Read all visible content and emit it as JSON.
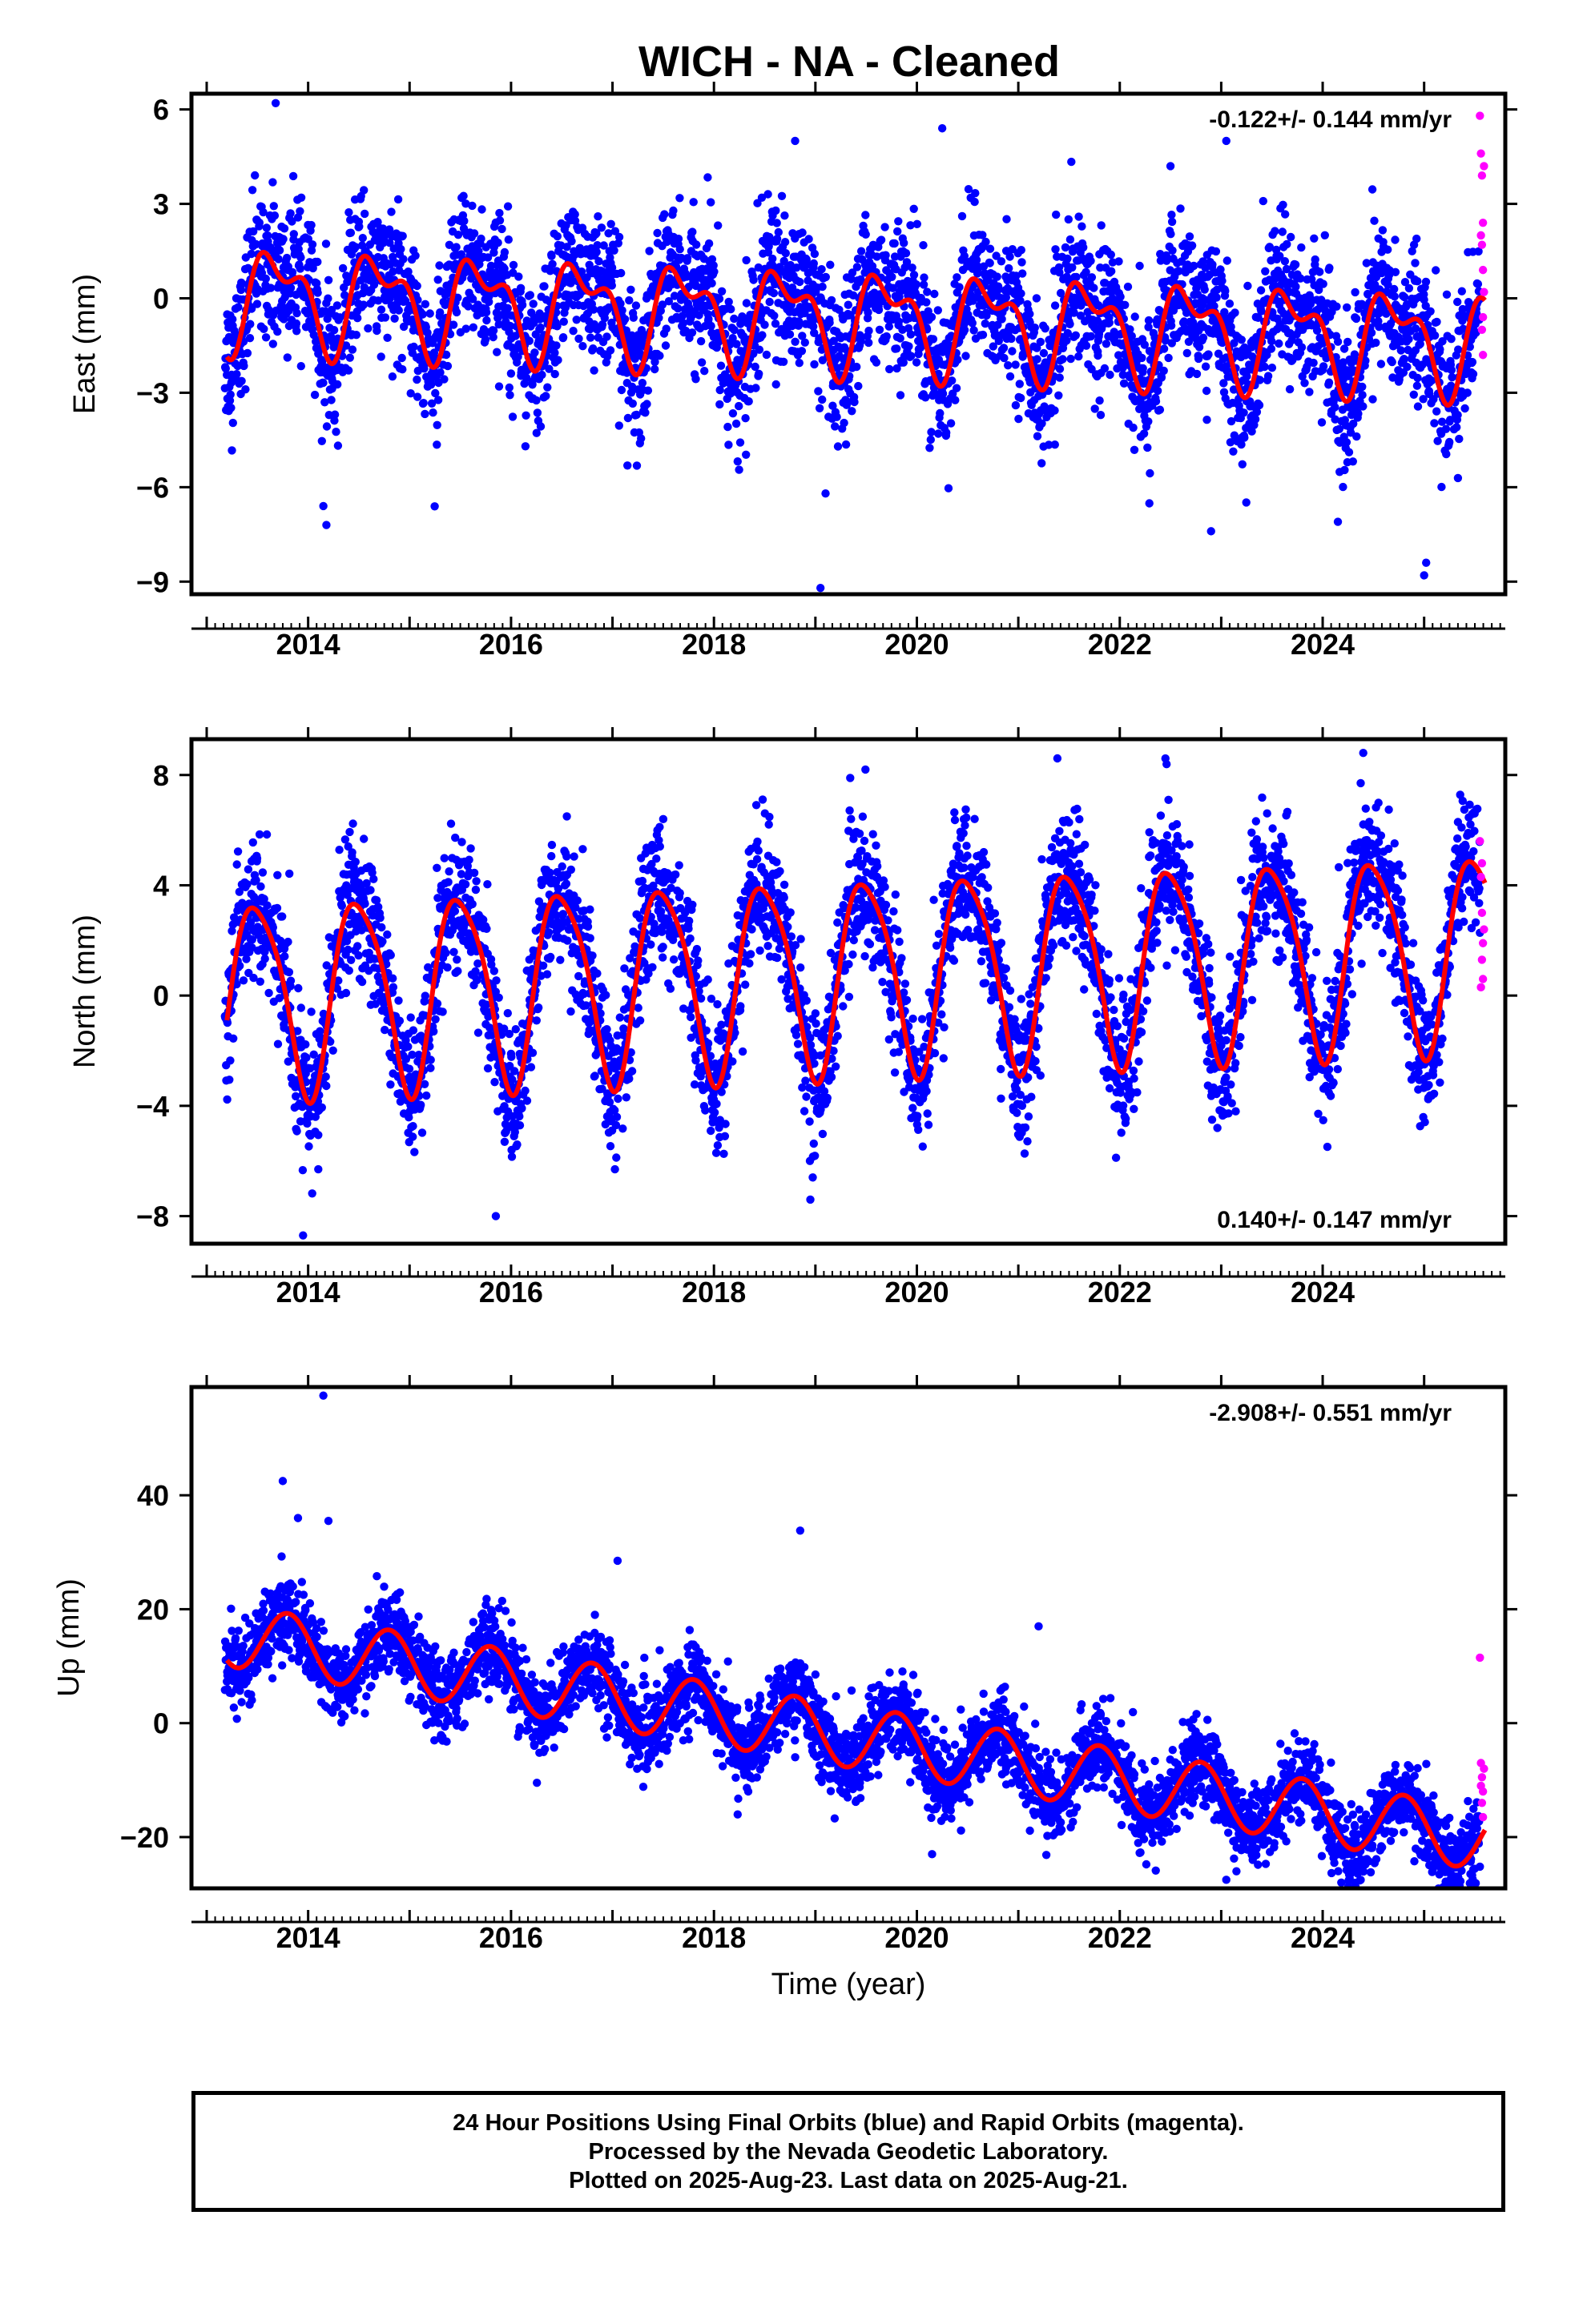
{
  "title": "WICH  - NA - Cleaned",
  "colors": {
    "final_orbits": "#0000ff",
    "rapid_orbits": "#ff00ff",
    "model": "#ff0000",
    "frame": "#000000"
  },
  "chart_data": [
    {
      "type": "scatter",
      "name": "east",
      "ylabel": "East (mm)",
      "xlabel": "",
      "rate_label": "-0.122+/- 0.144 mm/yr",
      "rate_position": "top-right",
      "xlim": [
        2012.85,
        2025.8
      ],
      "ylim": [
        -9.4,
        6.5
      ],
      "xticks": [
        "2014",
        "2016",
        "2018",
        "2020",
        "2022",
        "2024"
      ],
      "yticks": [
        "6",
        "3",
        "0",
        "-3",
        "-6",
        "-9"
      ],
      "model": {
        "offset": 0.1,
        "trend": -0.12,
        "annual_amp": 1.35,
        "annual_peak": 0.7,
        "semi_amp": 0.75,
        "semi_phase": 0.5,
        "noise": 1.1
      },
      "outliers": [
        [
          2013.68,
          6.2
        ],
        [
          2014.18,
          -7.2
        ],
        [
          2014.15,
          -6.6
        ],
        [
          2019.05,
          -9.2
        ],
        [
          2019.1,
          -6.2
        ],
        [
          2022.9,
          -7.4
        ],
        [
          2023.05,
          5.0
        ],
        [
          2024.15,
          -7.1
        ],
        [
          2025.0,
          -8.8
        ],
        [
          2025.02,
          -8.4
        ],
        [
          2020.25,
          5.4
        ],
        [
          2018.8,
          5.0
        ],
        [
          2022.5,
          4.2
        ]
      ],
      "rapid": [
        [
          2025.55,
          5.8
        ],
        [
          2025.56,
          4.6
        ],
        [
          2025.57,
          3.9
        ],
        [
          2025.58,
          2.4
        ],
        [
          2025.57,
          1.7
        ],
        [
          2025.58,
          0.9
        ],
        [
          2025.59,
          0.2
        ],
        [
          2025.58,
          -0.6
        ],
        [
          2025.57,
          -1.0
        ],
        [
          2025.58,
          -1.8
        ],
        [
          2025.56,
          2.0
        ],
        [
          2025.59,
          4.2
        ]
      ]
    },
    {
      "type": "scatter",
      "name": "north",
      "ylabel": "North (mm)",
      "xlabel": "",
      "rate_label": "0.140+/- 0.147 mm/yr",
      "rate_position": "bottom-right",
      "xlim": [
        2012.85,
        2025.8
      ],
      "ylim": [
        -9.0,
        9.3
      ],
      "xticks": [
        "2014",
        "2016",
        "2018",
        "2020",
        "2022",
        "2024"
      ],
      "yticks": [
        "8",
        "4",
        "0",
        "-4",
        "-8"
      ],
      "model": {
        "offset": 0.0,
        "trend": 0.14,
        "annual_amp": 3.5,
        "annual_peak": 0.5,
        "semi_amp": 0.6,
        "semi_phase": 0.3,
        "noise": 1.2
      },
      "outliers": [
        [
          2013.95,
          -8.7
        ],
        [
          2014.1,
          -6.3
        ],
        [
          2015.85,
          -8.0
        ],
        [
          2018.95,
          -7.4
        ],
        [
          2022.45,
          8.6
        ],
        [
          2024.4,
          8.8
        ],
        [
          2016.55,
          6.5
        ],
        [
          2017.5,
          6.4
        ]
      ],
      "rapid": [
        [
          2025.55,
          5.6
        ],
        [
          2025.56,
          4.3
        ],
        [
          2025.57,
          3.0
        ],
        [
          2025.58,
          1.9
        ],
        [
          2025.57,
          1.3
        ],
        [
          2025.58,
          0.6
        ],
        [
          2025.56,
          0.3
        ],
        [
          2025.59,
          2.4
        ],
        [
          2025.57,
          4.8
        ]
      ]
    },
    {
      "type": "scatter",
      "name": "up",
      "ylabel": "Up (mm)",
      "xlabel": "Time (year)",
      "rate_label": "-2.908+/- 0.551 mm/yr",
      "rate_position": "top-right",
      "xlim": [
        2012.85,
        2025.8
      ],
      "ylim": [
        -29,
        59
      ],
      "xticks": [
        "2014",
        "2016",
        "2018",
        "2020",
        "2022",
        "2024"
      ],
      "yticks": [
        "40",
        "20",
        "0",
        "-20"
      ],
      "model": {
        "offset": 15.5,
        "trend": -2.9,
        "annual_amp": 5.5,
        "annual_peak": 0.8,
        "semi_amp": 0.0,
        "semi_phase": 0.0,
        "noise": 3.5
      },
      "outliers": [
        [
          2014.15,
          57.5
        ],
        [
          2013.75,
          42.5
        ],
        [
          2013.9,
          36.0
        ],
        [
          2014.2,
          35.5
        ],
        [
          2018.85,
          33.8
        ],
        [
          2017.05,
          28.5
        ],
        [
          2021.2,
          17.0
        ],
        [
          2023.05,
          -27.5
        ],
        [
          2023.15,
          -26.0
        ],
        [
          2020.15,
          -23.0
        ]
      ],
      "rapid": [
        [
          2025.55,
          11.5
        ],
        [
          2025.56,
          -7.0
        ],
        [
          2025.57,
          -9.5
        ],
        [
          2025.58,
          -12.0
        ],
        [
          2025.57,
          -14.0
        ],
        [
          2025.58,
          -16.5
        ],
        [
          2025.56,
          -11.0
        ],
        [
          2025.59,
          -8.0
        ]
      ]
    }
  ],
  "caption": {
    "line1": "24 Hour Positions Using Final Orbits (blue) and Rapid Orbits (magenta).",
    "line2": "Processed by the Nevada Geodetic Laboratory.",
    "line3": "Plotted on 2025-Aug-23. Last data on 2025-Aug-21."
  }
}
